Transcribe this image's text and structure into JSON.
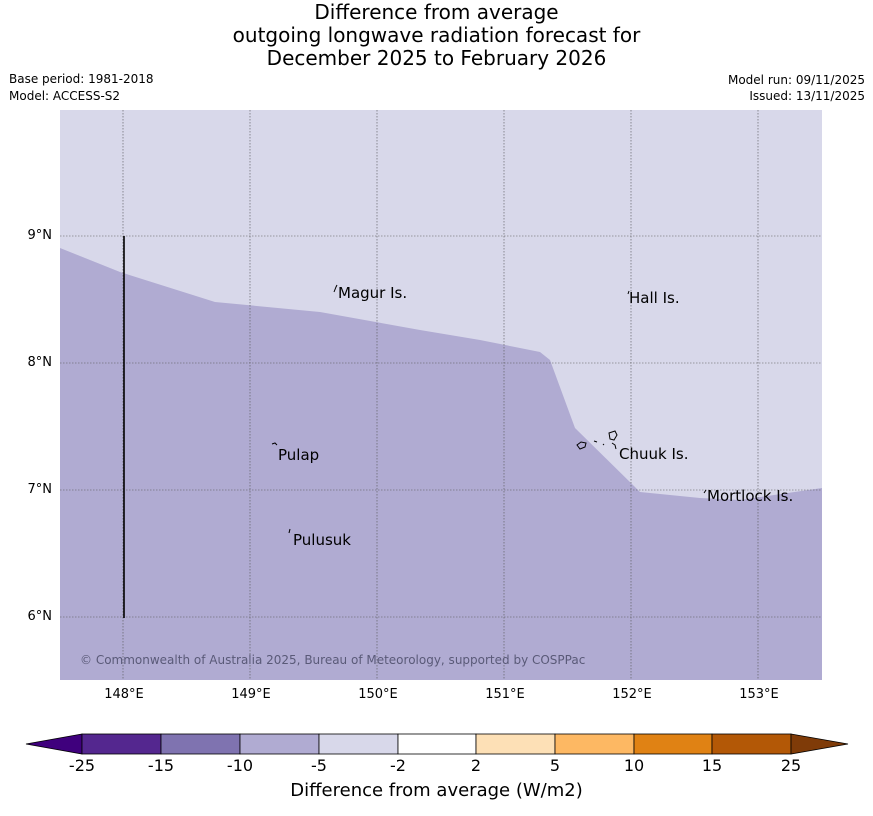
{
  "title": {
    "line1": "Difference from average",
    "line2": "outgoing longwave radiation forecast for",
    "line3": "December 2025 to February 2026"
  },
  "meta_left": {
    "base_period": "Base period: 1981-2018",
    "model": "Model: ACCESS-S2"
  },
  "meta_right": {
    "model_run": "Model run: 09/11/2025",
    "issued": "Issued: 13/11/2025"
  },
  "map": {
    "extent": {
      "lon_min": 147.5,
      "lon_max": 153.5,
      "lat_min": 5.5,
      "lat_max": 10.0
    },
    "lat_labels": [
      "9°N",
      "8°N",
      "7°N",
      "6°N"
    ],
    "lon_labels": [
      "148°E",
      "149°E",
      "150°E",
      "151°E",
      "152°E",
      "153°E"
    ],
    "places": [
      "Magur Is.",
      "Hall Is.",
      "Pulap",
      "Chuuk Is.",
      "Mortlock Is.",
      "Pulusuk"
    ],
    "copyright": "© Commonwealth of Australia 2025, Bureau of Meteorology, supported by COSPPac",
    "colors": {
      "upper_region": "#d8d8ea",
      "lower_region": "#b0abd2",
      "grid": "#555555"
    }
  },
  "colorbar": {
    "title": "Difference from average (W/m2)",
    "ticks": [
      "-25",
      "-15",
      "-10",
      "-5",
      "-2",
      "2",
      "5",
      "10",
      "15",
      "25"
    ],
    "colors": [
      "#3f007d",
      "#54278f",
      "#7f73b0",
      "#b0abd2",
      "#d8d8ea",
      "#ffffff",
      "#fde0b6",
      "#fdb863",
      "#e08214",
      "#b35806",
      "#7f3b08"
    ]
  }
}
